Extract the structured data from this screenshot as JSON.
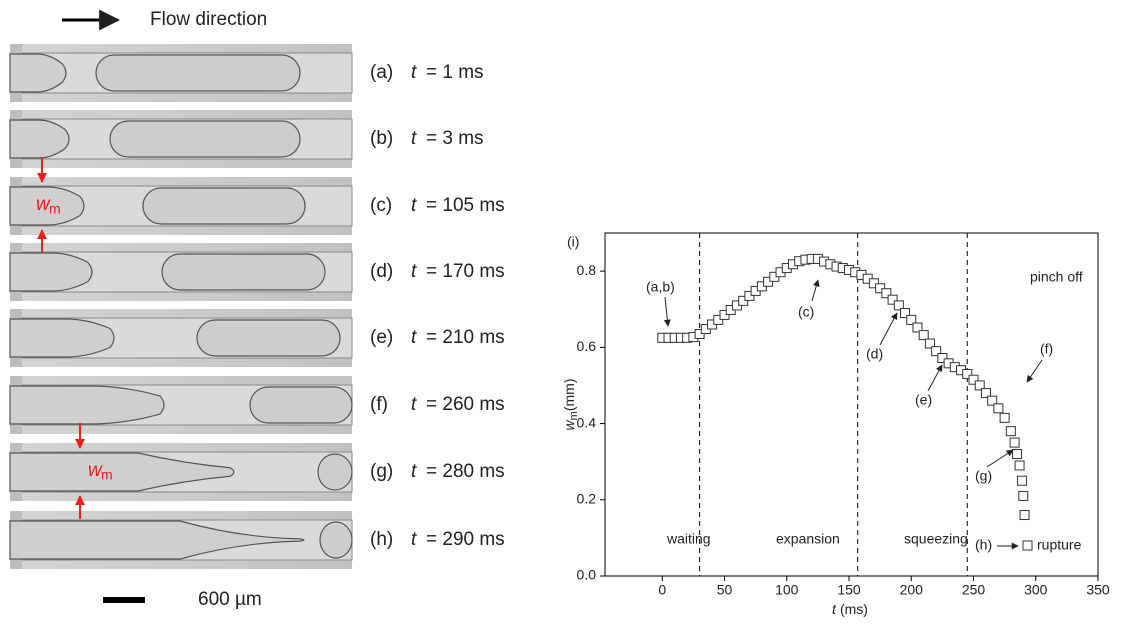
{
  "flow_label": "Flow direction",
  "scale_label": "600 µm",
  "panels": [
    {
      "label": "(a)",
      "var": "t",
      "value": "= 1 ms"
    },
    {
      "label": "(b)",
      "var": "t",
      "value": "= 3 ms"
    },
    {
      "label": "(c)",
      "var": "t",
      "value": "= 105 ms"
    },
    {
      "label": "(d)",
      "var": "t",
      "value": "= 170 ms"
    },
    {
      "label": "(e)",
      "var": "t",
      "value": "= 210 ms"
    },
    {
      "label": "(f)",
      "var": "t",
      "value": "= 260 ms"
    },
    {
      "label": "(g)",
      "var": "t",
      "value": "= 280 ms"
    },
    {
      "label": "(h)",
      "var": "t",
      "value": "= 290 ms"
    }
  ],
  "width_marker": {
    "main": "w",
    "sub": "m"
  },
  "chart_data": {
    "type": "scatter",
    "panel_label": "(i)",
    "xlabel": {
      "var": "t",
      "unit": "(ms)"
    },
    "ylabel": {
      "var": "w",
      "sub": "m",
      "unit": "(mm)"
    },
    "xlim": [
      -46,
      350
    ],
    "ylim": [
      0,
      0.9
    ],
    "xticks": [
      0,
      50,
      100,
      150,
      200,
      250,
      300,
      350
    ],
    "yticks": [
      {
        "value": 0,
        "label": "0.0"
      },
      0.2,
      0.4,
      0.6,
      0.8
    ],
    "phase_boundaries": [
      30,
      157,
      245
    ],
    "phases": [
      "waiting",
      "expansion",
      "squeezing",
      "pinch off"
    ],
    "annotations": [
      "(a,b)",
      "(c)",
      "(d)",
      "(e)",
      "(f)",
      "(g)",
      "(h)",
      "rupture"
    ],
    "marker_color": "#333333",
    "x": [
      0,
      5,
      10,
      15,
      20,
      25,
      30,
      35,
      40,
      45,
      50,
      55,
      60,
      65,
      70,
      75,
      80,
      85,
      90,
      95,
      100,
      105,
      110,
      115,
      120,
      125,
      130,
      135,
      140,
      145,
      150,
      155,
      160,
      165,
      170,
      175,
      180,
      185,
      190,
      195,
      200,
      205,
      210,
      215,
      220,
      225,
      230,
      235,
      240,
      245,
      250,
      255,
      260,
      265,
      270,
      275,
      280,
      283,
      285,
      287,
      289,
      290,
      291
    ],
    "values": [
      0.625,
      0.625,
      0.625,
      0.625,
      0.625,
      0.627,
      0.635,
      0.648,
      0.66,
      0.672,
      0.685,
      0.698,
      0.71,
      0.722,
      0.735,
      0.748,
      0.76,
      0.772,
      0.785,
      0.797,
      0.808,
      0.818,
      0.826,
      0.83,
      0.832,
      0.832,
      0.825,
      0.818,
      0.812,
      0.808,
      0.803,
      0.797,
      0.79,
      0.78,
      0.768,
      0.755,
      0.742,
      0.725,
      0.71,
      0.69,
      0.672,
      0.652,
      0.632,
      0.61,
      0.59,
      0.572,
      0.558,
      0.548,
      0.54,
      0.53,
      0.515,
      0.5,
      0.48,
      0.46,
      0.44,
      0.415,
      0.38,
      0.35,
      0.32,
      0.29,
      0.25,
      0.21,
      0.16
    ]
  }
}
